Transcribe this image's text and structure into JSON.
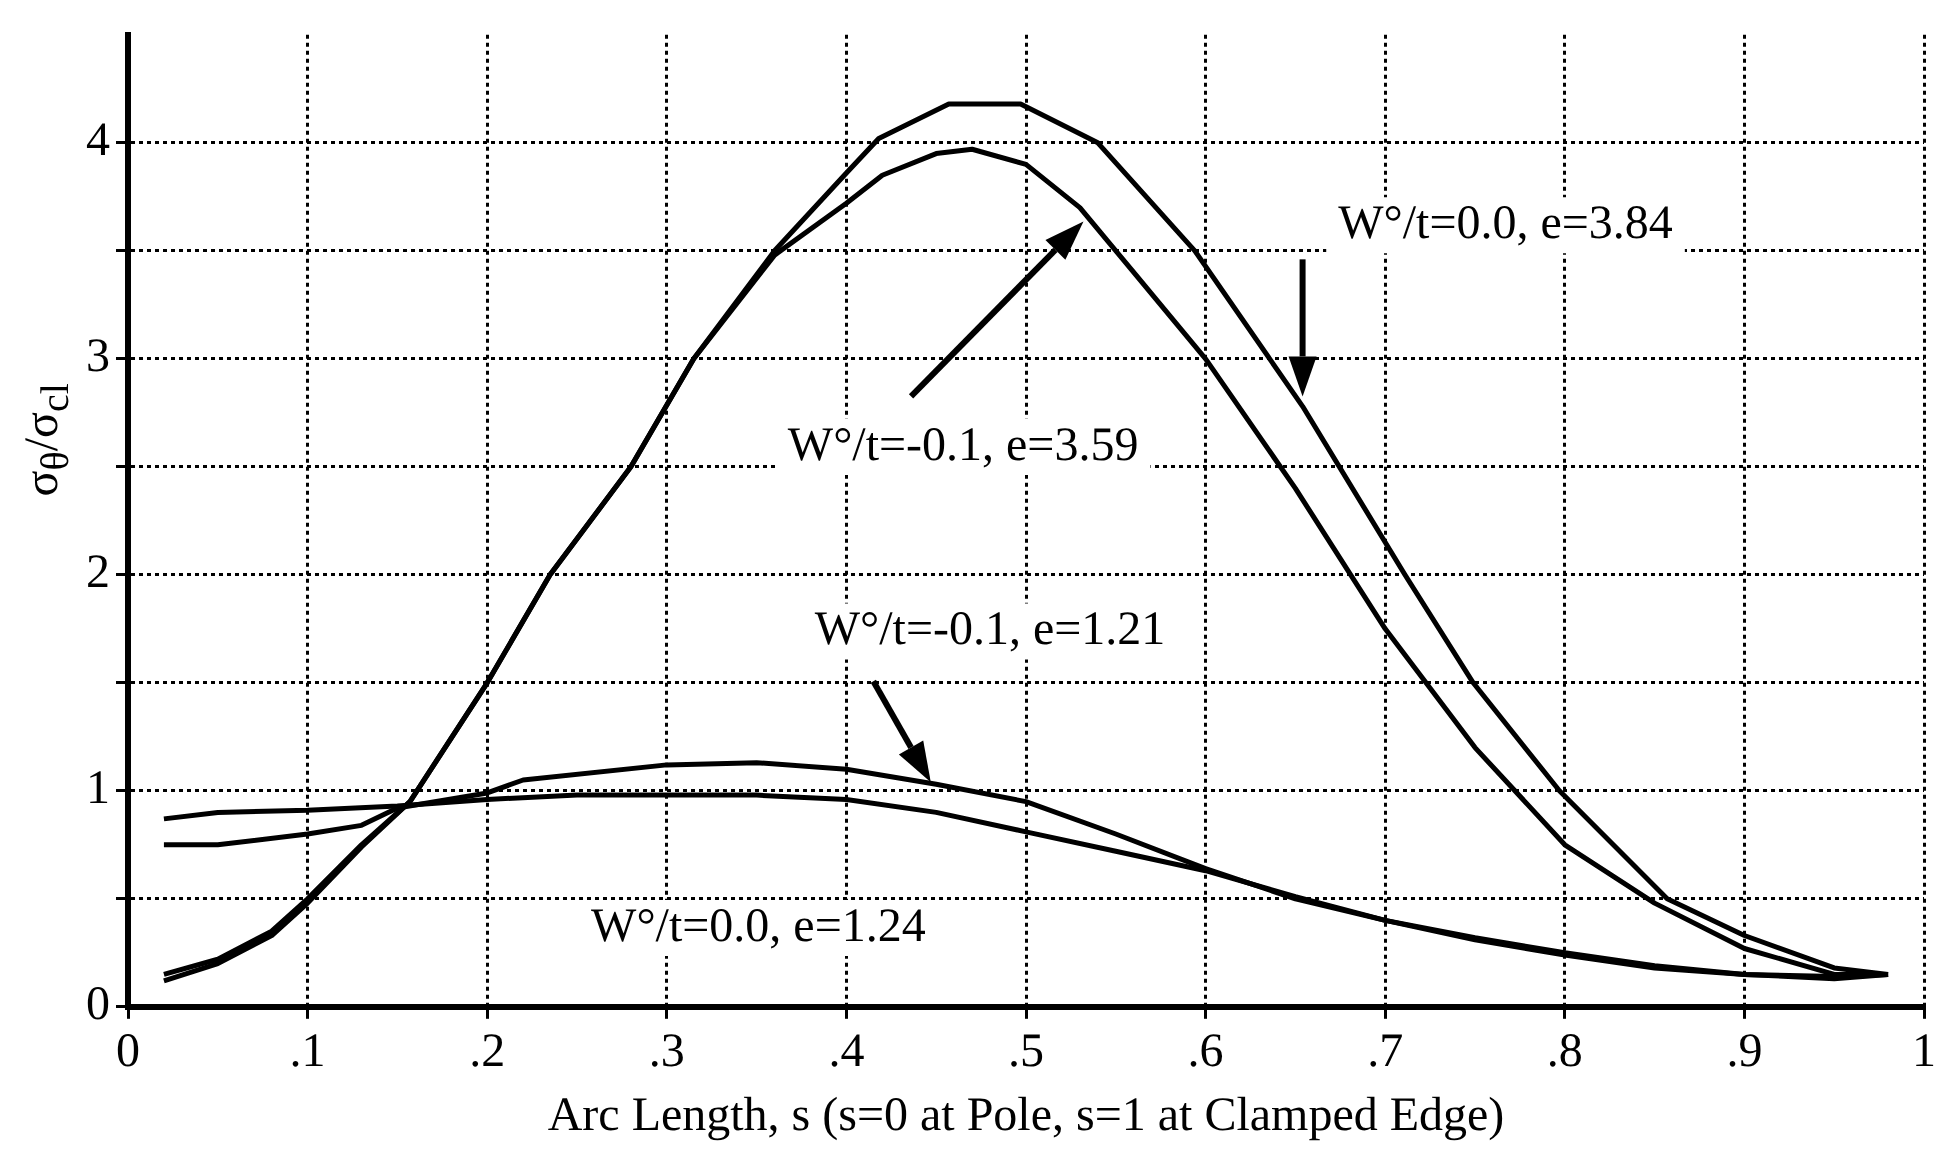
{
  "chart_data": {
    "type": "line",
    "xlabel": "Arc Length, s (s=0 at Pole, s=1 at Clamped Edge)",
    "ylabel": "σ$_{θ}$/σ$_{cl}$",
    "xlim": [
      0,
      1
    ],
    "ylim": [
      0,
      4.5
    ],
    "xticks": [
      0,
      {
        "value": 0.1,
        "label": ".1"
      },
      {
        "value": 0.2,
        "label": ".2"
      },
      {
        "value": 0.3,
        "label": ".3"
      },
      {
        "value": 0.4,
        "label": ".4"
      },
      {
        "value": 0.5,
        "label": ".5"
      },
      {
        "value": 0.6,
        "label": ".6"
      },
      {
        "value": 0.7,
        "label": ".7"
      },
      {
        "value": 0.8,
        "label": ".8"
      },
      {
        "value": 0.9,
        "label": ".9"
      },
      1
    ],
    "yticks": [
      0,
      {
        "value": 0.5,
        "label": null
      },
      1,
      {
        "value": 1.5,
        "label": null
      },
      2,
      {
        "value": 2.5,
        "label": null
      },
      3,
      {
        "value": 3.5,
        "label": null
      },
      4
    ],
    "grid": true,
    "legend": false,
    "marker": "none",
    "line_style": "solid",
    "series": [
      {
        "color": "#000000",
        "x": [
          0.02,
          0.05,
          0.08,
          0.1,
          0.13,
          0.157,
          0.2,
          0.235,
          0.28,
          0.315,
          0.36,
          0.4,
          0.418,
          0.457,
          0.497,
          0.54,
          0.594,
          0.654,
          0.711,
          0.749,
          0.797,
          0.857,
          0.9,
          0.95,
          0.98
        ],
        "values": [
          0.15,
          0.22,
          0.35,
          0.5,
          0.75,
          0.95,
          1.5,
          2.0,
          2.5,
          3.0,
          3.5,
          3.86,
          4.02,
          4.18,
          4.18,
          4.0,
          3.5,
          2.78,
          2.0,
          1.5,
          1.0,
          0.5,
          0.33,
          0.18,
          0.15
        ]
      },
      {
        "color": "#000000",
        "x": [
          0.02,
          0.05,
          0.08,
          0.1,
          0.13,
          0.157,
          0.2,
          0.235,
          0.28,
          0.315,
          0.36,
          0.4,
          0.42,
          0.45,
          0.47,
          0.5,
          0.53,
          0.56,
          0.6,
          0.65,
          0.7,
          0.75,
          0.8,
          0.85,
          0.9,
          0.95,
          0.98
        ],
        "values": [
          0.12,
          0.2,
          0.33,
          0.48,
          0.74,
          0.95,
          1.5,
          2.0,
          2.5,
          3.0,
          3.48,
          3.72,
          3.85,
          3.95,
          3.97,
          3.9,
          3.7,
          3.4,
          3.0,
          2.4,
          1.75,
          1.2,
          0.75,
          0.48,
          0.27,
          0.15,
          0.15
        ]
      },
      {
        "color": "#000000",
        "x": [
          0.02,
          0.05,
          0.1,
          0.13,
          0.15,
          0.2,
          0.22,
          0.3,
          0.35,
          0.4,
          0.45,
          0.5,
          0.55,
          0.6,
          0.65,
          0.7,
          0.75,
          0.8,
          0.85,
          0.9,
          0.95,
          0.98
        ],
        "values": [
          0.75,
          0.75,
          0.8,
          0.84,
          0.92,
          0.99,
          1.05,
          1.12,
          1.13,
          1.1,
          1.03,
          0.95,
          0.8,
          0.64,
          0.5,
          0.4,
          0.31,
          0.24,
          0.18,
          0.15,
          0.13,
          0.15
        ]
      },
      {
        "color": "#000000",
        "x": [
          0.02,
          0.05,
          0.1,
          0.15,
          0.2,
          0.25,
          0.3,
          0.35,
          0.4,
          0.45,
          0.5,
          0.55,
          0.6,
          0.65,
          0.7,
          0.75,
          0.8,
          0.85,
          0.9,
          0.95,
          0.98
        ],
        "values": [
          0.87,
          0.9,
          0.91,
          0.93,
          0.96,
          0.98,
          0.98,
          0.98,
          0.96,
          0.9,
          0.81,
          0.72,
          0.63,
          0.51,
          0.4,
          0.32,
          0.25,
          0.19,
          0.15,
          0.14,
          0.15
        ]
      }
    ],
    "annotations": [
      "W°/t=0.0, e=3.84",
      "W°/t=-0.1, e=3.59",
      "W°/t=-0.1, e=1.21",
      "W°/t=0.0, e=1.24"
    ]
  }
}
